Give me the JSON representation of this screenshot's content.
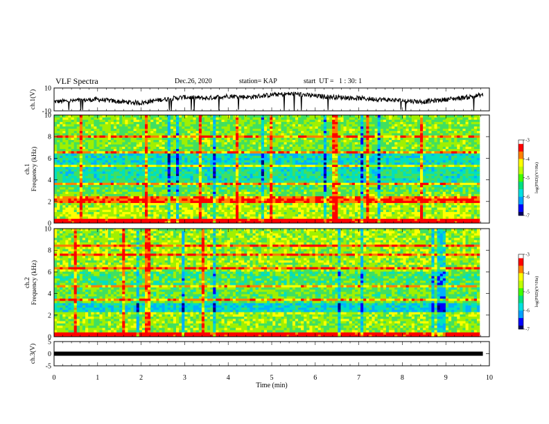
{
  "header": {
    "title": "VLF Spectra",
    "date": "Dec.26, 2020",
    "station": "station= KAP",
    "start": "start  UT =   1 : 30: 1"
  },
  "chart_data": [
    {
      "type": "line",
      "panel": "ch1-waveform",
      "ylabel": "ch.1(V)",
      "ylim": [
        -10,
        10
      ],
      "y_tick_labels": [
        "10",
        "-10"
      ],
      "xlim": [
        0,
        9.85
      ],
      "x": [
        0,
        0.5,
        1,
        1.5,
        2,
        2.5,
        3,
        3.5,
        4,
        4.5,
        5,
        5.5,
        6,
        6.5,
        7,
        7.5,
        8,
        8.5,
        9,
        9.5,
        9.85
      ],
      "values": [
        -2,
        -1,
        0,
        -2,
        -3,
        0,
        2,
        1,
        3,
        2,
        4,
        5,
        3,
        2,
        1,
        0,
        -1,
        -2,
        0,
        2,
        4
      ]
    },
    {
      "type": "heatmap",
      "panel": "ch1-spectrogram",
      "ylabel": "ch.1\nFrequency (kHz)",
      "ylim": [
        0,
        10
      ],
      "y_ticks": [
        "0",
        "2",
        "4",
        "6",
        "8",
        "10"
      ],
      "xlim": [
        0,
        9.85
      ],
      "colorbar": {
        "label": "log(PSD)(V²/Hz)",
        "range": [
          -7,
          -3
        ],
        "ticks": [
          "-3",
          "-4",
          "-5",
          "-6",
          "-7"
        ]
      }
    },
    {
      "type": "heatmap",
      "panel": "ch2-spectrogram",
      "ylabel": "ch.2\nFrequency (kHz)",
      "ylim": [
        0,
        10
      ],
      "y_ticks": [
        "0",
        "2",
        "4",
        "6",
        "8",
        "10"
      ],
      "xlim": [
        0,
        9.85
      ],
      "colorbar": {
        "label": "log(PSD)(V²/Hz)",
        "range": [
          -7,
          -3
        ],
        "ticks": [
          "-3",
          "-4",
          "-5",
          "-6",
          "-7"
        ]
      }
    },
    {
      "type": "line",
      "panel": "ch3-waveform",
      "ylabel": "ch.3(V)",
      "ylim": [
        -5,
        5
      ],
      "y_tick_labels": [
        "5",
        "0",
        "-5"
      ],
      "xlim": [
        0,
        9.85
      ],
      "x": [
        0,
        9.85
      ],
      "values": [
        0,
        0
      ]
    }
  ],
  "xaxis": {
    "label": "Time  (min)",
    "ticks": [
      "0",
      "1",
      "2",
      "3",
      "4",
      "5",
      "6",
      "7",
      "8",
      "9",
      "10"
    ]
  },
  "colors": {
    "colormap": [
      "#000080",
      "#0000ff",
      "#00b0ff",
      "#00e0c0",
      "#40e060",
      "#a0f000",
      "#ffff00",
      "#ff8000",
      "#ff0000",
      "#ffffff"
    ],
    "trace": "#000000"
  }
}
